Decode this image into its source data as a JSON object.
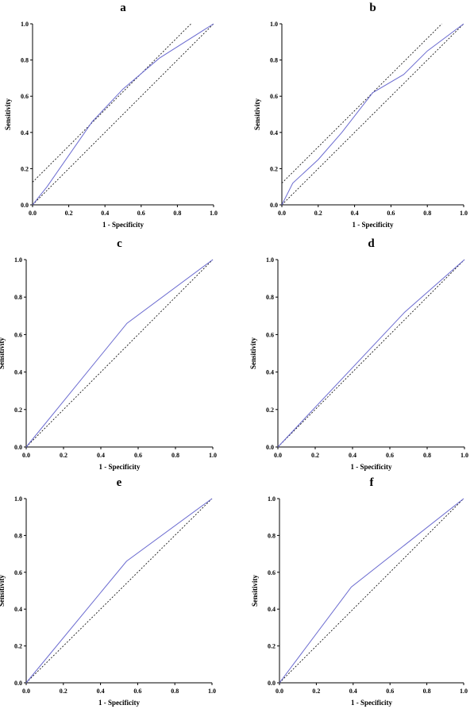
{
  "chart_data": [
    {
      "type": "line",
      "panel": "a",
      "xlabel": "1 - Specificity",
      "ylabel": "Sensitivity",
      "xlim": [
        0,
        1
      ],
      "ylim": [
        0,
        1
      ],
      "ticks": [
        "0.0",
        "0.2",
        "0.4",
        "0.6",
        "0.8",
        "1.0"
      ],
      "roc": {
        "x": [
          0,
          0.08,
          0.33,
          0.5,
          0.7,
          1.0
        ],
        "y": [
          0,
          0.1,
          0.46,
          0.64,
          0.81,
          1.0
        ]
      },
      "reference_lines": [
        {
          "x": [
            0,
            1
          ],
          "y": [
            0,
            1
          ]
        },
        {
          "x": [
            0,
            0.875
          ],
          "y": [
            0.125,
            1.0
          ]
        }
      ],
      "line_color": "#6b6bd0"
    },
    {
      "type": "line",
      "panel": "b",
      "xlabel": "1 - Specificity",
      "ylabel": "Sensitivity",
      "xlim": [
        0,
        1
      ],
      "ylim": [
        0,
        1
      ],
      "ticks": [
        "0.0",
        "0.2",
        "0.4",
        "0.6",
        "0.8",
        "1.0"
      ],
      "roc": {
        "x": [
          0,
          0.06,
          0.2,
          0.33,
          0.5,
          0.67,
          0.8,
          1.0
        ],
        "y": [
          0,
          0.12,
          0.25,
          0.4,
          0.62,
          0.72,
          0.85,
          1.0
        ]
      },
      "reference_lines": [
        {
          "x": [
            0,
            1
          ],
          "y": [
            0,
            1
          ]
        },
        {
          "x": [
            0,
            0.88
          ],
          "y": [
            0.12,
            1.0
          ]
        }
      ],
      "line_color": "#6b6bd0"
    },
    {
      "type": "line",
      "panel": "c",
      "xlabel": "1 - Specificity",
      "ylabel": "Sensitivity",
      "xlim": [
        0,
        1
      ],
      "ylim": [
        0,
        1
      ],
      "ticks": [
        "0.0",
        "0.2",
        "0.4",
        "0.6",
        "0.8",
        "1.0"
      ],
      "roc": {
        "x": [
          0,
          0.54,
          1.0
        ],
        "y": [
          0,
          0.66,
          1.0
        ]
      },
      "reference_lines": [
        {
          "x": [
            0,
            1
          ],
          "y": [
            0,
            1
          ]
        }
      ],
      "line_color": "#6b6bd0"
    },
    {
      "type": "line",
      "panel": "d",
      "xlabel": "1 - Specificity",
      "ylabel": "Sensitivity",
      "xlim": [
        0,
        1
      ],
      "ylim": [
        0,
        1
      ],
      "ticks": [
        "0.0",
        "0.2",
        "0.4",
        "0.6",
        "0.8",
        "1.0"
      ],
      "roc": {
        "x": [
          0,
          0.68,
          1.0
        ],
        "y": [
          0,
          0.72,
          1.0
        ]
      },
      "reference_lines": [
        {
          "x": [
            0,
            1
          ],
          "y": [
            0,
            1
          ]
        }
      ],
      "line_color": "#6b6bd0"
    },
    {
      "type": "line",
      "panel": "e",
      "xlabel": "1 - Specificity",
      "ylabel": "Sensitivity",
      "xlim": [
        0,
        1
      ],
      "ylim": [
        0,
        1
      ],
      "ticks": [
        "0.0",
        "0.2",
        "0.4",
        "0.6",
        "0.8",
        "1.0"
      ],
      "roc": {
        "x": [
          0,
          0.54,
          1.0
        ],
        "y": [
          0,
          0.66,
          1.0
        ]
      },
      "reference_lines": [
        {
          "x": [
            0,
            1
          ],
          "y": [
            0,
            1
          ]
        }
      ],
      "line_color": "#6b6bd0"
    },
    {
      "type": "line",
      "panel": "f",
      "xlabel": "1 - Specificity",
      "ylabel": "Sensitivity",
      "xlim": [
        0,
        1
      ],
      "ylim": [
        0,
        1
      ],
      "ticks": [
        "0.0",
        "0.2",
        "0.4",
        "0.6",
        "0.8",
        "1.0"
      ],
      "roc": {
        "x": [
          0,
          0.39,
          1.0
        ],
        "y": [
          0,
          0.52,
          1.0
        ]
      },
      "reference_lines": [
        {
          "x": [
            0,
            1
          ],
          "y": [
            0,
            1
          ]
        }
      ],
      "line_color": "#6b6bd0"
    }
  ]
}
